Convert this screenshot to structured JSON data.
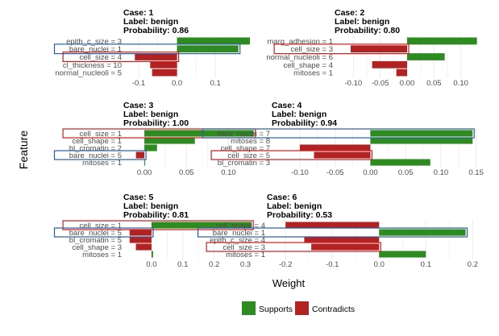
{
  "axis_labels": {
    "x": "Weight",
    "y": "Feature"
  },
  "legend": {
    "title": "",
    "items": [
      {
        "label": "Supports",
        "color": "#2e8b22"
      },
      {
        "label": "Contradicts",
        "color": "#b22222"
      }
    ]
  },
  "colors": {
    "supports": "#2e8b22",
    "contradicts": "#b22222",
    "highlight_red": "#c81e1e",
    "highlight_blue": "#2c5e9e",
    "grid": "#ebebeb",
    "axis_text": "#4d4d4d"
  },
  "chart_data": [
    {
      "type": "bar",
      "orientation": "horizontal",
      "case_title": "Case: 1",
      "label_title": "Label: benign",
      "prob_title": "Probability: 0.86",
      "categories": [
        "epith_c_size = 3",
        "bare_nuclei = 1",
        "cell_size = 4",
        "cl_thickness = 10",
        "normal_nucleoli = 5"
      ],
      "values": [
        0.19,
        0.16,
        -0.11,
        -0.07,
        -0.065
      ],
      "xlim": [
        -0.14,
        0.19
      ],
      "xticks": [
        -0.1,
        0.0,
        0.1
      ],
      "xtick_labels": [
        "-0.1",
        "0.0",
        "0.1"
      ],
      "highlights": [
        {
          "feature": "bare_nuclei = 1",
          "color": "blue"
        },
        {
          "feature": "cell_size = 4",
          "color": "red"
        }
      ]
    },
    {
      "type": "bar",
      "orientation": "horizontal",
      "case_title": "Case: 2",
      "label_title": "Label: benign",
      "prob_title": "Probability: 0.80",
      "categories": [
        "marg_adhesion = 1",
        "cell_size = 3",
        "normal_nucleoli = 6",
        "cell_shape = 4",
        "mitoses = 1"
      ],
      "values": [
        0.13,
        -0.105,
        0.07,
        -0.065,
        -0.02
      ],
      "xlim": [
        -0.135,
        0.135
      ],
      "xticks": [
        -0.1,
        -0.05,
        0.0,
        0.05,
        0.1
      ],
      "xtick_labels": [
        "-0.10",
        "-0.05",
        "0.00",
        "0.05",
        "0.10"
      ],
      "highlights": [
        {
          "feature": "cell_size = 3",
          "color": "red"
        }
      ]
    },
    {
      "type": "bar",
      "orientation": "horizontal",
      "case_title": "Case: 3",
      "label_title": "Label: benign",
      "prob_title": "Probability: 1.00",
      "categories": [
        "cell_size = 1",
        "cell_shape = 1",
        "bl_cromatin = 2",
        "bare_nuclei = 5",
        "mitoses = 1"
      ],
      "values": [
        0.13,
        0.06,
        0.015,
        -0.01,
        0.001
      ],
      "xlim": [
        -0.025,
        0.135
      ],
      "xticks": [
        0.0,
        0.05,
        0.1
      ],
      "xtick_labels": [
        "0.00",
        "0.05",
        "0.10"
      ],
      "highlights": [
        {
          "feature": "cell_size = 1",
          "color": "red"
        },
        {
          "feature": "bare_nuclei = 5",
          "color": "blue"
        }
      ]
    },
    {
      "type": "bar",
      "orientation": "horizontal",
      "case_title": "Case: 4",
      "label_title": "Label: benign",
      "prob_title": "Probability: 0.94",
      "categories": [
        "bare_nuclei = 7",
        "mitoses = 8",
        "cell_shape = 7",
        "cell_size = 5",
        "bl_cromatin = 3"
      ],
      "values": [
        0.145,
        0.145,
        -0.1,
        -0.08,
        0.085
      ],
      "xlim": [
        -0.14,
        0.155
      ],
      "xticks": [
        -0.1,
        -0.05,
        0.0,
        0.05,
        0.1,
        0.15
      ],
      "xtick_labels": [
        "-0.10",
        "-0.05",
        "0.00",
        "0.05",
        "0.10",
        "0.15"
      ],
      "highlights": [
        {
          "feature": "bare_nuclei = 7",
          "color": "blue"
        },
        {
          "feature": "cell_size = 5",
          "color": "red"
        }
      ]
    },
    {
      "type": "bar",
      "orientation": "horizontal",
      "case_title": "Case: 5",
      "label_title": "Label: benign",
      "prob_title": "Probability: 0.81",
      "categories": [
        "cell_size = 1",
        "bare_nuclei = 5",
        "bl_cromatin = 5",
        "cell_shape = 3",
        "mitoses = 1"
      ],
      "values": [
        0.32,
        -0.07,
        -0.07,
        -0.05,
        0.005
      ],
      "xlim": [
        -0.09,
        0.34
      ],
      "xticks": [
        0.0,
        0.1,
        0.2,
        0.3
      ],
      "xtick_labels": [
        "0.0",
        "0.1",
        "0.2",
        "0.3"
      ],
      "highlights": [
        {
          "feature": "cell_size = 1",
          "color": "red"
        },
        {
          "feature": "bare_nuclei = 5",
          "color": "blue"
        }
      ]
    },
    {
      "type": "bar",
      "orientation": "horizontal",
      "case_title": "Case: 6",
      "label_title": "Label: benign",
      "prob_title": "Probability: 0.53",
      "categories": [
        "cell_shape = 4",
        "bare_nuclei = 1",
        "epith_c_size = 4",
        "cell_size = 3",
        "mitoses = 1"
      ],
      "values": [
        -0.2,
        0.185,
        -0.16,
        -0.145,
        0.1
      ],
      "xlim": [
        -0.24,
        0.215
      ],
      "xticks": [
        -0.2,
        -0.1,
        0.0,
        0.1,
        0.2
      ],
      "xtick_labels": [
        "-0.2",
        "-0.1",
        "0.0",
        "0.1",
        "0.2"
      ],
      "highlights": [
        {
          "feature": "bare_nuclei = 1",
          "color": "blue"
        },
        {
          "feature": "cell_size = 3",
          "color": "red"
        }
      ]
    }
  ]
}
